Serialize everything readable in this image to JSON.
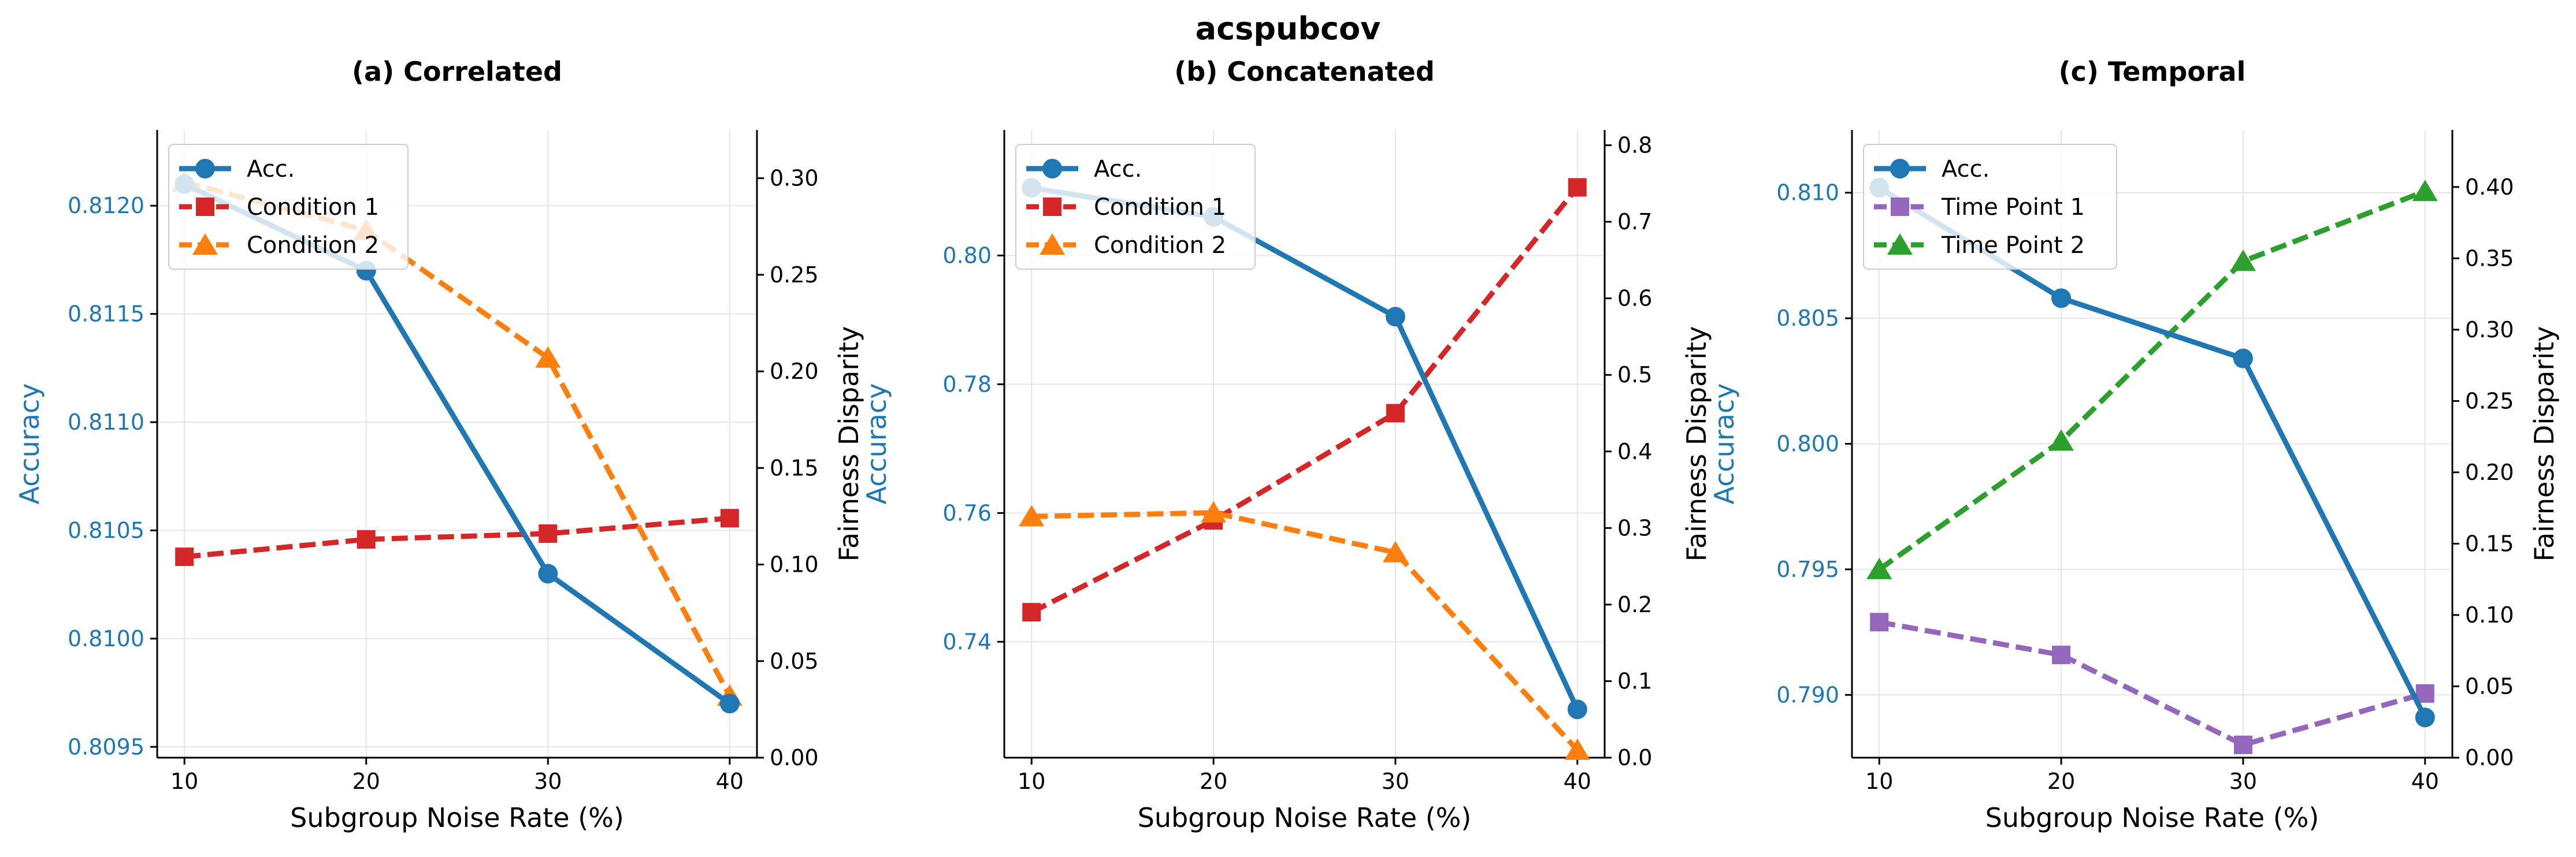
{
  "figure": {
    "suptitle": "acspubcov"
  },
  "colors": {
    "accuracy": "#1f77b4",
    "red": "#d62728",
    "orange": "#ff7f0e",
    "purple": "#9467bd",
    "green": "#2ca02c",
    "grid": "#e6e6e6",
    "axis": "#000000"
  },
  "chart_data": [
    {
      "type": "line",
      "title": "(a) Correlated",
      "xlabel": "Subgroup Noise Rate (%)",
      "ylabel_left": "Accuracy",
      "ylabel_right": "Fairness Disparity",
      "x": [
        10,
        20,
        30,
        40
      ],
      "x_ticks": [
        "10",
        "20",
        "30",
        "40"
      ],
      "xlim": [
        8.5,
        41.5
      ],
      "ylim_left": [
        0.80945,
        0.81235
      ],
      "yticks_left": [
        "0.8095",
        "0.8100",
        "0.8105",
        "0.8110",
        "0.8115",
        "0.8120"
      ],
      "ylim_right": [
        0.0,
        0.325
      ],
      "yticks_right": [
        "0.00",
        "0.05",
        "0.10",
        "0.15",
        "0.20",
        "0.25",
        "0.30"
      ],
      "grid": true,
      "legend": "upper-left",
      "series": [
        {
          "name": "Acc.",
          "axis": "left",
          "color": "#1f77b4",
          "marker": "circle",
          "dash": false,
          "values": [
            0.8121,
            0.8117,
            0.8103,
            0.8097
          ]
        },
        {
          "name": "Condition 1",
          "axis": "right",
          "color": "#d62728",
          "marker": "square",
          "dash": true,
          "values": [
            0.104,
            0.113,
            0.116,
            0.124
          ]
        },
        {
          "name": "Condition 2",
          "axis": "right",
          "color": "#ff7f0e",
          "marker": "triangle",
          "dash": true,
          "values": [
            0.298,
            0.273,
            0.207,
            0.032
          ]
        }
      ]
    },
    {
      "type": "line",
      "title": "(b) Concatenated",
      "xlabel": "Subgroup Noise Rate (%)",
      "ylabel_left": "Accuracy",
      "ylabel_right": "Fairness Disparity",
      "x": [
        10,
        20,
        30,
        40
      ],
      "x_ticks": [
        "10",
        "20",
        "30",
        "40"
      ],
      "xlim": [
        8.5,
        41.5
      ],
      "ylim_left": [
        0.722,
        0.8195
      ],
      "yticks_left": [
        "0.74",
        "0.76",
        "0.78",
        "0.80"
      ],
      "ylim_right": [
        0.0,
        0.82
      ],
      "yticks_right": [
        "0.0",
        "0.1",
        "0.2",
        "0.3",
        "0.4",
        "0.5",
        "0.6",
        "0.7",
        "0.8"
      ],
      "grid": true,
      "legend": "upper-left",
      "series": [
        {
          "name": "Acc.",
          "axis": "left",
          "color": "#1f77b4",
          "marker": "circle",
          "dash": false,
          "values": [
            0.8105,
            0.806,
            0.7905,
            0.7295
          ]
        },
        {
          "name": "Condition 1",
          "axis": "right",
          "color": "#d62728",
          "marker": "square",
          "dash": true,
          "values": [
            0.19,
            0.31,
            0.45,
            0.745
          ]
        },
        {
          "name": "Condition 2",
          "axis": "right",
          "color": "#ff7f0e",
          "marker": "triangle",
          "dash": true,
          "values": [
            0.315,
            0.32,
            0.268,
            0.01
          ]
        }
      ]
    },
    {
      "type": "line",
      "title": "(c) Temporal",
      "xlabel": "Subgroup Noise Rate (%)",
      "ylabel_left": "Accuracy",
      "ylabel_right": "Fairness Disparity",
      "x": [
        10,
        20,
        30,
        40
      ],
      "x_ticks": [
        "10",
        "20",
        "30",
        "40"
      ],
      "xlim": [
        8.5,
        41.5
      ],
      "ylim_left": [
        0.7875,
        0.8125
      ],
      "yticks_left": [
        "0.790",
        "0.795",
        "0.800",
        "0.805",
        "0.810"
      ],
      "ylim_right": [
        0.0,
        0.44
      ],
      "yticks_right": [
        "0.00",
        "0.05",
        "0.10",
        "0.15",
        "0.20",
        "0.25",
        "0.30",
        "0.35",
        "0.40"
      ],
      "grid": true,
      "legend": "upper-left",
      "series": [
        {
          "name": "Acc.",
          "axis": "left",
          "color": "#1f77b4",
          "marker": "circle",
          "dash": false,
          "values": [
            0.8102,
            0.8058,
            0.8034,
            0.7891
          ]
        },
        {
          "name": "Time Point 1",
          "axis": "right",
          "color": "#9467bd",
          "marker": "square",
          "dash": true,
          "values": [
            0.095,
            0.072,
            0.009,
            0.045
          ]
        },
        {
          "name": "Time Point 2",
          "axis": "right",
          "color": "#2ca02c",
          "marker": "triangle",
          "dash": true,
          "values": [
            0.132,
            0.222,
            0.348,
            0.397
          ]
        }
      ]
    }
  ]
}
